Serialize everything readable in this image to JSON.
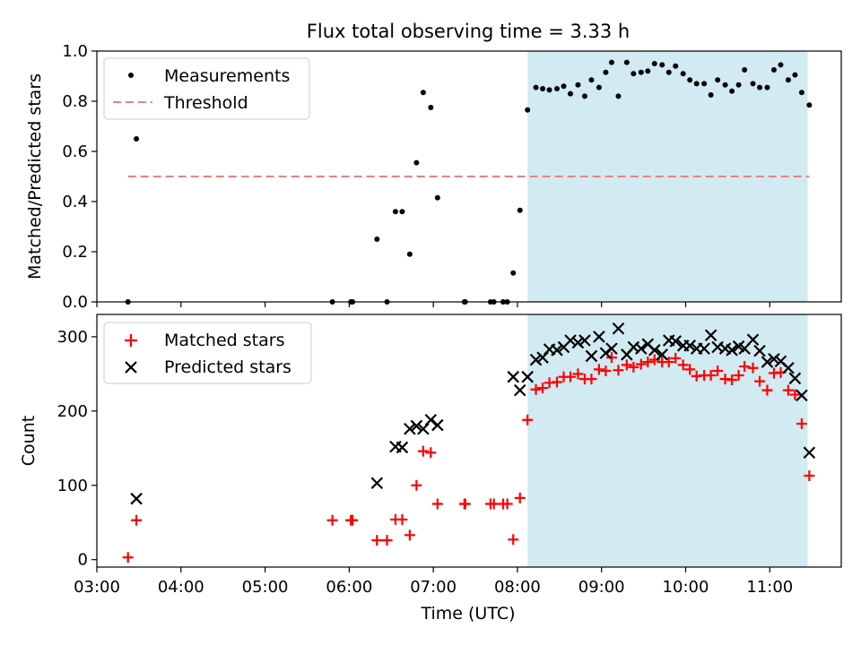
{
  "chart_data": {
    "title": "Flux total observing time = 3.33 h",
    "xlabel": "Time (UTC)",
    "x_unit": "hours UTC",
    "xlim": [
      3.0,
      11.85
    ],
    "xticks": [
      3,
      4,
      5,
      6,
      7,
      8,
      9,
      10,
      11
    ],
    "xtick_labels": [
      "03:00",
      "04:00",
      "05:00",
      "06:00",
      "07:00",
      "08:00",
      "09:00",
      "10:00",
      "11:00"
    ],
    "highlight_span": {
      "x_start": 8.12,
      "x_end": 11.45,
      "color": "#add8e6"
    },
    "panels": [
      {
        "type": "scatter",
        "ylabel": "Matched/Predicted stars",
        "ylim": [
          0,
          1.0
        ],
        "yticks": [
          0.0,
          0.2,
          0.4,
          0.6,
          0.8,
          1.0
        ],
        "ytick_labels": [
          "0.0",
          "0.2",
          "0.4",
          "0.6",
          "0.8",
          "1.0"
        ],
        "legend": "top-left",
        "threshold": {
          "name": "Threshold",
          "y": 0.5,
          "x_start": 3.37,
          "x_end": 11.47,
          "color": "#f08080"
        },
        "series": [
          {
            "name": "Measurements",
            "color": "#000000",
            "marker": "dot",
            "points": [
              [
                3.37,
                0.0
              ],
              [
                3.47,
                0.65
              ],
              [
                5.8,
                0.0
              ],
              [
                6.02,
                0.0
              ],
              [
                6.04,
                0.0
              ],
              [
                6.33,
                0.25
              ],
              [
                6.45,
                0.0
              ],
              [
                6.55,
                0.36
              ],
              [
                6.63,
                0.36
              ],
              [
                6.72,
                0.19
              ],
              [
                6.8,
                0.555
              ],
              [
                6.88,
                0.835
              ],
              [
                6.97,
                0.775
              ],
              [
                7.05,
                0.415
              ],
              [
                7.37,
                0.0
              ],
              [
                7.38,
                0.0
              ],
              [
                7.68,
                0.0
              ],
              [
                7.72,
                0.0
              ],
              [
                7.83,
                0.0
              ],
              [
                7.88,
                0.0
              ],
              [
                7.95,
                0.115
              ],
              [
                8.03,
                0.365
              ],
              [
                8.12,
                0.765
              ],
              [
                8.22,
                0.855
              ],
              [
                8.3,
                0.85
              ],
              [
                8.38,
                0.845
              ],
              [
                8.47,
                0.85
              ],
              [
                8.55,
                0.86
              ],
              [
                8.63,
                0.83
              ],
              [
                8.72,
                0.865
              ],
              [
                8.8,
                0.82
              ],
              [
                8.88,
                0.885
              ],
              [
                8.97,
                0.855
              ],
              [
                9.05,
                0.915
              ],
              [
                9.12,
                0.955
              ],
              [
                9.2,
                0.82
              ],
              [
                9.3,
                0.955
              ],
              [
                9.38,
                0.91
              ],
              [
                9.47,
                0.915
              ],
              [
                9.55,
                0.92
              ],
              [
                9.63,
                0.95
              ],
              [
                9.72,
                0.945
              ],
              [
                9.8,
                0.915
              ],
              [
                9.88,
                0.94
              ],
              [
                9.97,
                0.91
              ],
              [
                10.05,
                0.885
              ],
              [
                10.13,
                0.87
              ],
              [
                10.22,
                0.87
              ],
              [
                10.3,
                0.825
              ],
              [
                10.38,
                0.885
              ],
              [
                10.47,
                0.865
              ],
              [
                10.55,
                0.84
              ],
              [
                10.63,
                0.865
              ],
              [
                10.7,
                0.925
              ],
              [
                10.8,
                0.87
              ],
              [
                10.88,
                0.855
              ],
              [
                10.97,
                0.855
              ],
              [
                11.05,
                0.925
              ],
              [
                11.13,
                0.945
              ],
              [
                11.22,
                0.885
              ],
              [
                11.3,
                0.905
              ],
              [
                11.38,
                0.835
              ],
              [
                11.47,
                0.785
              ]
            ]
          }
        ]
      },
      {
        "type": "scatter",
        "ylabel": "Count",
        "ylim": [
          -10,
          330
        ],
        "yticks": [
          0,
          100,
          200,
          300
        ],
        "ytick_labels": [
          "0",
          "100",
          "200",
          "300"
        ],
        "legend": "top-left",
        "series": [
          {
            "name": "Matched stars",
            "color": "#ff0000",
            "marker": "plus",
            "points": [
              [
                3.37,
                3
              ],
              [
                3.47,
                53
              ],
              [
                5.8,
                53
              ],
              [
                6.02,
                53
              ],
              [
                6.04,
                53
              ],
              [
                6.33,
                26
              ],
              [
                6.45,
                26
              ],
              [
                6.55,
                54
              ],
              [
                6.63,
                54
              ],
              [
                6.72,
                33
              ],
              [
                6.8,
                100
              ],
              [
                6.88,
                146
              ],
              [
                6.97,
                144
              ],
              [
                7.05,
                75
              ],
              [
                7.37,
                75
              ],
              [
                7.38,
                75
              ],
              [
                7.68,
                75
              ],
              [
                7.72,
                75
              ],
              [
                7.83,
                75
              ],
              [
                7.88,
                75
              ],
              [
                7.95,
                27
              ],
              [
                8.03,
                83
              ],
              [
                8.12,
                188
              ],
              [
                8.22,
                229
              ],
              [
                8.3,
                231
              ],
              [
                8.38,
                238
              ],
              [
                8.47,
                239
              ],
              [
                8.55,
                246
              ],
              [
                8.63,
                246
              ],
              [
                8.72,
                250
              ],
              [
                8.8,
                243
              ],
              [
                8.88,
                243
              ],
              [
                8.97,
                256
              ],
              [
                9.05,
                254
              ],
              [
                9.12,
                272
              ],
              [
                9.2,
                255
              ],
              [
                9.3,
                262
              ],
              [
                9.38,
                259
              ],
              [
                9.47,
                263
              ],
              [
                9.55,
                266
              ],
              [
                9.63,
                269
              ],
              [
                9.72,
                266
              ],
              [
                9.8,
                266
              ],
              [
                9.88,
                271
              ],
              [
                9.97,
                262
              ],
              [
                10.05,
                256
              ],
              [
                10.13,
                247
              ],
              [
                10.22,
                248
              ],
              [
                10.3,
                248
              ],
              [
                10.38,
                254
              ],
              [
                10.47,
                243
              ],
              [
                10.55,
                242
              ],
              [
                10.63,
                248
              ],
              [
                10.7,
                260
              ],
              [
                10.8,
                258
              ],
              [
                10.88,
                240
              ],
              [
                10.97,
                228
              ],
              [
                11.05,
                251
              ],
              [
                11.13,
                252
              ],
              [
                11.22,
                228
              ],
              [
                11.3,
                222
              ],
              [
                11.38,
                183
              ],
              [
                11.47,
                113
              ]
            ]
          },
          {
            "name": "Predicted stars",
            "color": "#000000",
            "marker": "x",
            "points": [
              [
                3.47,
                82
              ],
              [
                6.33,
                103
              ],
              [
                6.55,
                152
              ],
              [
                6.63,
                151
              ],
              [
                6.72,
                176
              ],
              [
                6.8,
                180
              ],
              [
                6.88,
                176
              ],
              [
                6.97,
                188
              ],
              [
                7.05,
                181
              ],
              [
                7.95,
                246
              ],
              [
                8.03,
                228
              ],
              [
                8.12,
                246
              ],
              [
                8.22,
                269
              ],
              [
                8.3,
                272
              ],
              [
                8.38,
                283
              ],
              [
                8.47,
                282
              ],
              [
                8.55,
                286
              ],
              [
                8.63,
                295
              ],
              [
                8.72,
                292
              ],
              [
                8.8,
                295
              ],
              [
                8.88,
                274
              ],
              [
                8.97,
                300
              ],
              [
                9.05,
                278
              ],
              [
                9.12,
                284
              ],
              [
                9.2,
                311
              ],
              [
                9.3,
                276
              ],
              [
                9.38,
                286
              ],
              [
                9.47,
                284
              ],
              [
                9.55,
                290
              ],
              [
                9.63,
                282
              ],
              [
                9.72,
                276
              ],
              [
                9.8,
                295
              ],
              [
                9.88,
                294
              ],
              [
                9.97,
                288
              ],
              [
                10.05,
                288
              ],
              [
                10.13,
                284
              ],
              [
                10.22,
                284
              ],
              [
                10.3,
                302
              ],
              [
                10.38,
                286
              ],
              [
                10.47,
                284
              ],
              [
                10.55,
                282
              ],
              [
                10.63,
                287
              ],
              [
                10.7,
                284
              ],
              [
                10.8,
                296
              ],
              [
                10.88,
                281
              ],
              [
                10.97,
                266
              ],
              [
                11.05,
                270
              ],
              [
                11.13,
                267
              ],
              [
                11.22,
                258
              ],
              [
                11.3,
                244
              ],
              [
                11.38,
                221
              ],
              [
                11.47,
                144
              ]
            ]
          }
        ]
      }
    ]
  }
}
